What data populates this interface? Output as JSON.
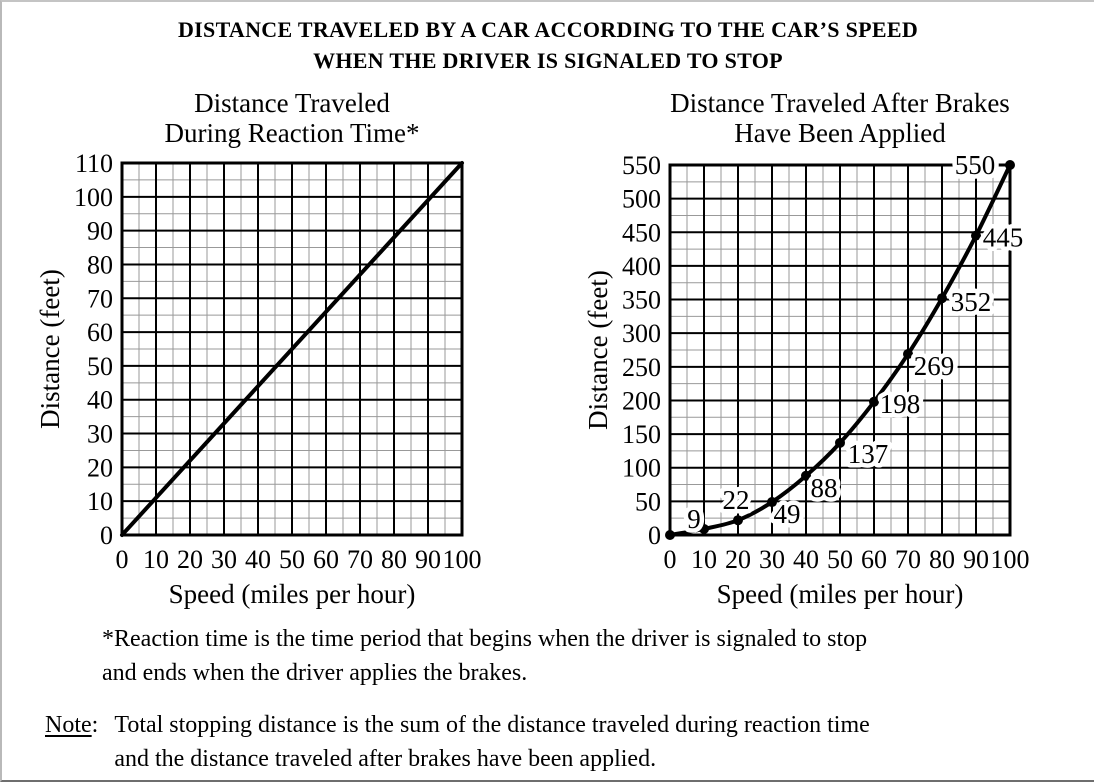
{
  "title": {
    "line1": "DISTANCE TRAVELED BY A CAR ACCORDING TO THE CAR’S SPEED",
    "line2": "WHEN THE DRIVER IS SIGNALED TO STOP"
  },
  "footnote": {
    "line1": "*Reaction time is the time period that begins when the driver is signaled to stop",
    "line2": "and ends when the driver applies the brakes."
  },
  "note": {
    "label_word": "Note",
    "label_colon": ":",
    "line1": "Total stopping distance is the sum of the distance traveled during reaction time",
    "line2": "and the distance traveled after brakes have been applied."
  },
  "colors": {
    "ink": "#000000",
    "minor_grid": "#999999",
    "background": "#ffffff"
  },
  "chart_data": [
    {
      "type": "line",
      "title": "Distance Traveled During Reaction Time*",
      "title_lines": [
        "Distance Traveled",
        "During Reaction Time*"
      ],
      "xlabel": "Speed (miles per hour)",
      "ylabel": "Distance (feet)",
      "xlim": [
        0,
        100
      ],
      "ylim": [
        0,
        110
      ],
      "x_tick_step": 10,
      "y_tick_step": 10,
      "x_minor_step": 5,
      "y_minor_step": 5,
      "grid": true,
      "markers": false,
      "x": [
        0,
        100
      ],
      "y": [
        0,
        110
      ]
    },
    {
      "type": "line",
      "title": "Distance Traveled After Brakes Have Been Applied",
      "title_lines": [
        "Distance Traveled After Brakes",
        "Have Been Applied"
      ],
      "xlabel": "Speed (miles per hour)",
      "ylabel": "Distance (feet)",
      "xlim": [
        0,
        100
      ],
      "ylim": [
        0,
        550
      ],
      "x_tick_step": 10,
      "y_tick_step": 50,
      "x_minor_step": 5,
      "y_minor_step": 25,
      "grid": true,
      "markers": true,
      "x": [
        0,
        10,
        20,
        30,
        40,
        50,
        60,
        70,
        80,
        90,
        100
      ],
      "y": [
        0,
        9,
        22,
        49,
        88,
        137,
        198,
        269,
        352,
        445,
        550
      ],
      "point_labels": [
        null,
        "9",
        "22",
        "49",
        "88",
        "137",
        "198",
        "269",
        "352",
        "445",
        "550"
      ]
    }
  ]
}
